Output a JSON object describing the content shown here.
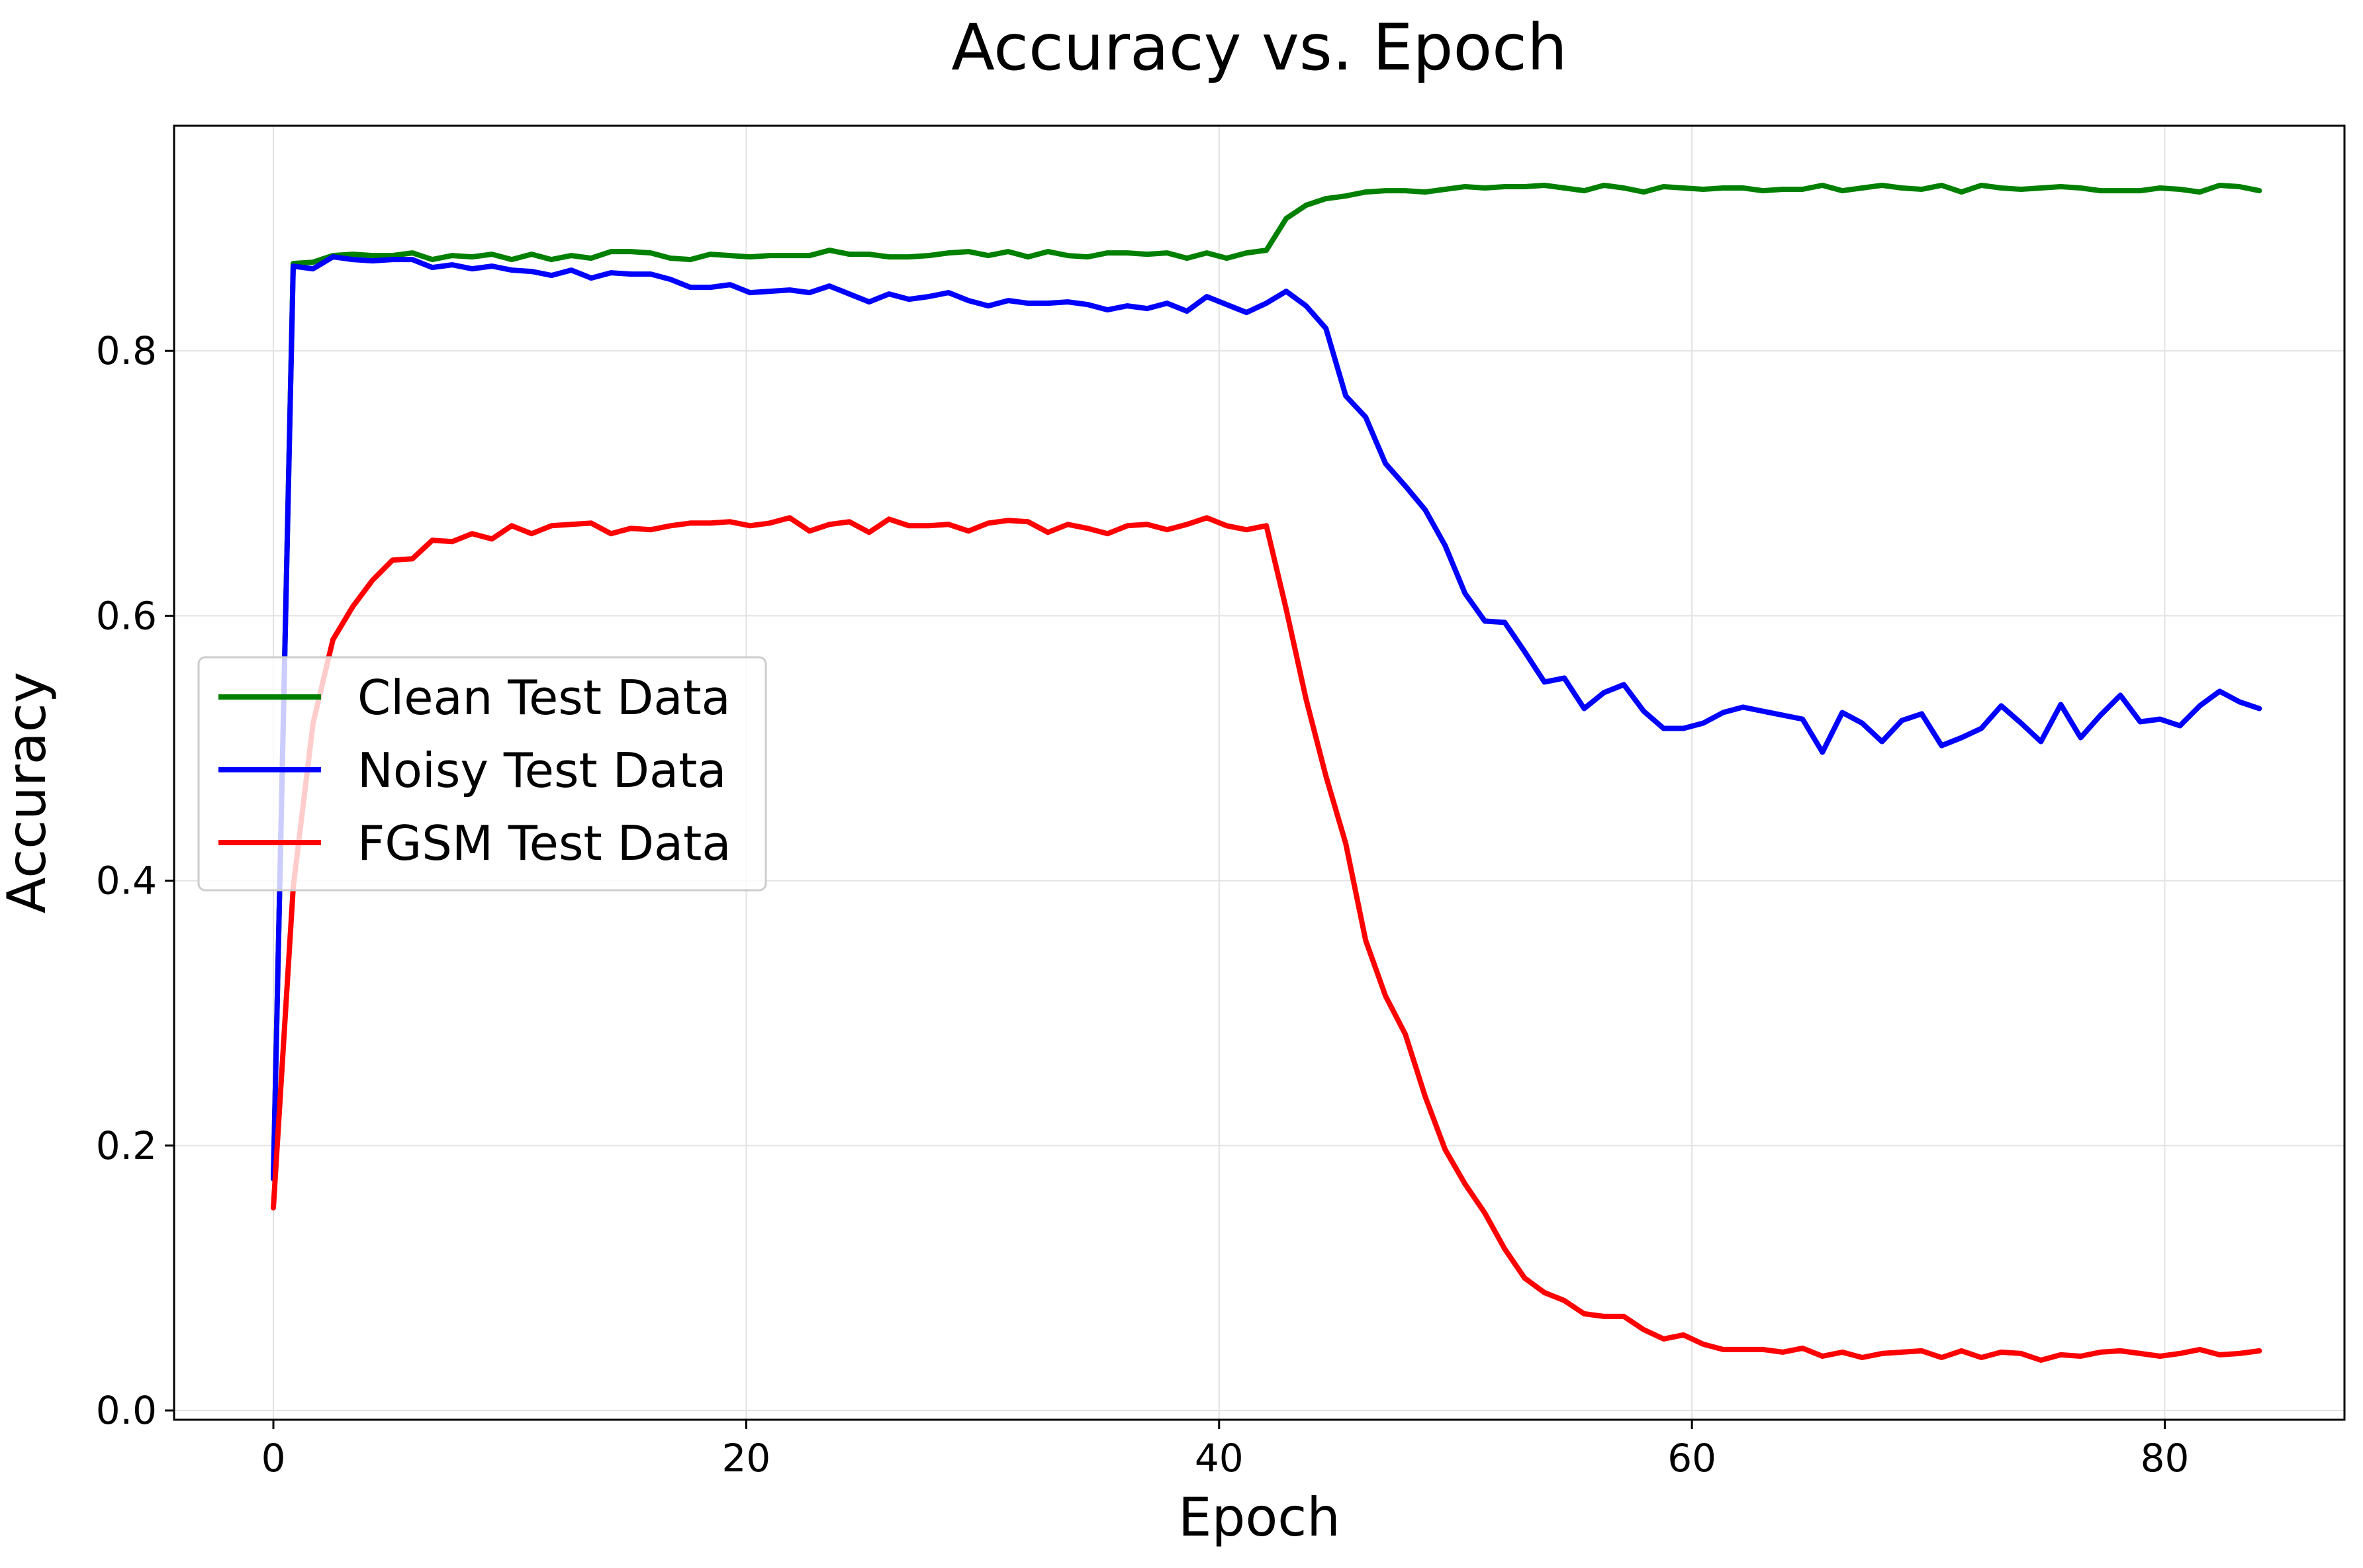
{
  "chart_data": {
    "type": "line",
    "title": "Accuracy vs. Epoch",
    "xlabel": "Epoch",
    "ylabel": "Accuracy",
    "xlim": [
      -4.2,
      87.6
    ],
    "ylim": [
      -0.007,
      0.97
    ],
    "xticks": [
      0,
      20,
      40,
      60,
      80
    ],
    "xtick_labels": [
      "0",
      "20",
      "40",
      "60",
      "80"
    ],
    "yticks": [
      0.0,
      0.2,
      0.4,
      0.6,
      0.8
    ],
    "ytick_labels": [
      "0.0",
      "0.2",
      "0.4",
      "0.6",
      "0.8"
    ],
    "grid": true,
    "legend_position": "center-left",
    "x": [
      0,
      0.84,
      1.68,
      2.52,
      3.36,
      4.2,
      5.04,
      5.88,
      6.72,
      7.56,
      8.4,
      9.24,
      10.08,
      10.92,
      11.76,
      12.6,
      13.44,
      14.28,
      15.12,
      15.96,
      16.8,
      17.64,
      18.48,
      19.32,
      20.16,
      21,
      21.84,
      22.68,
      23.52,
      24.36,
      25.2,
      26.04,
      26.88,
      27.72,
      28.56,
      29.4,
      30.24,
      31.08,
      31.92,
      32.76,
      33.6,
      34.44,
      35.28,
      36.12,
      36.96,
      37.8,
      38.64,
      39.48,
      40.32,
      41.16,
      42,
      42.84,
      43.68,
      44.52,
      45.36,
      46.2,
      47.04,
      47.88,
      48.72,
      49.56,
      50.4,
      51.24,
      52.08,
      52.92,
      53.76,
      54.6,
      55.44,
      56.28,
      57.12,
      57.96,
      58.8,
      59.64,
      60.48,
      61.32,
      62.16,
      63,
      63.84,
      64.68,
      65.52,
      66.36,
      67.2,
      68.04,
      68.88,
      69.72,
      70.56,
      71.4,
      72.24,
      73.08,
      73.92,
      74.76,
      75.6,
      76.44,
      77.28,
      78.12,
      78.96,
      79.8,
      80.64,
      81.48,
      82.32,
      83.16,
      84
    ],
    "series": [
      {
        "name": "Clean Test Data",
        "color": "#008000",
        "values": [
          0.175,
          0.866,
          0.867,
          0.872,
          0.873,
          0.872,
          0.872,
          0.874,
          0.869,
          0.872,
          0.871,
          0.873,
          0.869,
          0.873,
          0.869,
          0.872,
          0.87,
          0.875,
          0.875,
          0.874,
          0.87,
          0.869,
          0.873,
          0.872,
          0.871,
          0.872,
          0.872,
          0.872,
          0.876,
          0.873,
          0.873,
          0.871,
          0.871,
          0.872,
          0.874,
          0.875,
          0.872,
          0.875,
          0.871,
          0.875,
          0.872,
          0.871,
          0.874,
          0.874,
          0.873,
          0.874,
          0.87,
          0.874,
          0.87,
          0.874,
          0.876,
          0.9,
          0.91,
          0.915,
          0.917,
          0.92,
          0.921,
          0.921,
          0.92,
          0.922,
          0.924,
          0.923,
          0.924,
          0.924,
          0.925,
          0.923,
          0.921,
          0.925,
          0.923,
          0.92,
          0.924,
          0.923,
          0.922,
          0.923,
          0.923,
          0.921,
          0.922,
          0.922,
          0.925,
          0.921,
          0.923,
          0.925,
          0.923,
          0.922,
          0.925,
          0.92,
          0.925,
          0.923,
          0.922,
          0.923,
          0.924,
          0.923,
          0.921,
          0.921,
          0.921,
          0.923,
          0.922,
          0.92,
          0.925,
          0.924,
          0.921
        ]
      },
      {
        "name": "Noisy Test Data",
        "color": "#0000ff",
        "values": [
          0.175,
          0.864,
          0.862,
          0.871,
          0.869,
          0.868,
          0.869,
          0.869,
          0.863,
          0.865,
          0.862,
          0.864,
          0.861,
          0.86,
          0.857,
          0.861,
          0.855,
          0.859,
          0.858,
          0.858,
          0.854,
          0.848,
          0.848,
          0.85,
          0.844,
          0.845,
          0.846,
          0.844,
          0.849,
          0.843,
          0.837,
          0.843,
          0.839,
          0.841,
          0.844,
          0.838,
          0.834,
          0.838,
          0.836,
          0.836,
          0.837,
          0.835,
          0.831,
          0.834,
          0.832,
          0.836,
          0.83,
          0.841,
          0.835,
          0.829,
          0.836,
          0.845,
          0.834,
          0.817,
          0.766,
          0.75,
          0.715,
          0.698,
          0.68,
          0.653,
          0.617,
          0.596,
          0.595,
          0.573,
          0.55,
          0.553,
          0.53,
          0.542,
          0.548,
          0.528,
          0.515,
          0.515,
          0.519,
          0.527,
          0.531,
          0.528,
          0.525,
          0.522,
          0.497,
          0.527,
          0.519,
          0.505,
          0.521,
          0.526,
          0.502,
          0.508,
          0.515,
          0.532,
          0.519,
          0.505,
          0.533,
          0.508,
          0.525,
          0.54,
          0.52,
          0.522,
          0.517,
          0.532,
          0.543,
          0.535,
          0.53
        ]
      },
      {
        "name": "FGSM Test Data",
        "color": "#ff0000",
        "values": [
          0.153,
          0.395,
          0.519,
          0.582,
          0.607,
          0.627,
          0.642,
          0.643,
          0.657,
          0.656,
          0.662,
          0.658,
          0.668,
          0.662,
          0.668,
          0.669,
          0.67,
          0.662,
          0.666,
          0.665,
          0.668,
          0.67,
          0.67,
          0.671,
          0.668,
          0.67,
          0.674,
          0.664,
          0.669,
          0.671,
          0.663,
          0.673,
          0.668,
          0.668,
          0.669,
          0.664,
          0.67,
          0.672,
          0.671,
          0.663,
          0.669,
          0.666,
          0.662,
          0.668,
          0.669,
          0.665,
          0.669,
          0.674,
          0.668,
          0.665,
          0.668,
          0.605,
          0.537,
          0.479,
          0.428,
          0.355,
          0.313,
          0.284,
          0.237,
          0.197,
          0.171,
          0.149,
          0.122,
          0.1,
          0.089,
          0.083,
          0.073,
          0.071,
          0.071,
          0.061,
          0.054,
          0.057,
          0.05,
          0.046,
          0.046,
          0.046,
          0.044,
          0.047,
          0.041,
          0.044,
          0.04,
          0.043,
          0.044,
          0.045,
          0.04,
          0.045,
          0.04,
          0.044,
          0.043,
          0.038,
          0.042,
          0.041,
          0.044,
          0.045,
          0.043,
          0.041,
          0.043,
          0.046,
          0.042,
          0.043,
          0.045
        ]
      }
    ]
  }
}
